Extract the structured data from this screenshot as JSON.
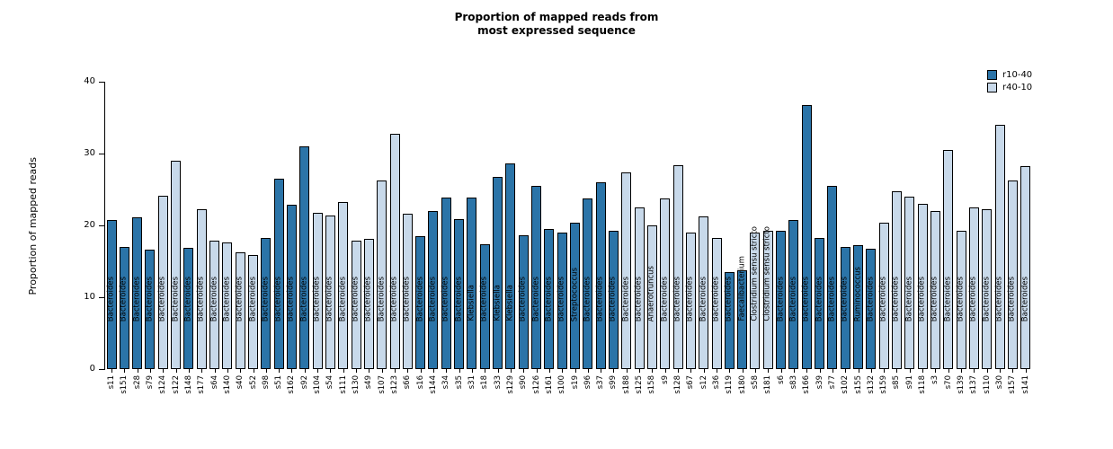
{
  "chart_data": {
    "type": "bar",
    "title": "Proportion of mapped reads from\nmost expressed sequence",
    "xlabel": "",
    "ylabel": "Proportion of mapped reads",
    "ylim": [
      0,
      40
    ],
    "yticks": [
      0,
      10,
      20,
      30,
      40
    ],
    "grid": false,
    "legend_position": "top-right",
    "legend": [
      {
        "label": "r10-40",
        "color": "#2b74a8"
      },
      {
        "label": "r40-10",
        "color": "#c8d9ea"
      }
    ],
    "bars": [
      {
        "sample": "s11",
        "value": 20.7,
        "group": "r10-40",
        "taxon": "Bacteroides"
      },
      {
        "sample": "s151",
        "value": 17.0,
        "group": "r10-40",
        "taxon": "Bacteroides"
      },
      {
        "sample": "s28",
        "value": 21.1,
        "group": "r10-40",
        "taxon": "Bacteroides"
      },
      {
        "sample": "s79",
        "value": 16.6,
        "group": "r10-40",
        "taxon": "Bacteroides"
      },
      {
        "sample": "s124",
        "value": 24.1,
        "group": "r40-10",
        "taxon": "Bacteroides"
      },
      {
        "sample": "s122",
        "value": 29.0,
        "group": "r40-10",
        "taxon": "Bacteroides"
      },
      {
        "sample": "s148",
        "value": 16.9,
        "group": "r10-40",
        "taxon": "Bacteroides"
      },
      {
        "sample": "s177",
        "value": 22.2,
        "group": "r40-10",
        "taxon": "Bacteroides"
      },
      {
        "sample": "s64",
        "value": 17.9,
        "group": "r40-10",
        "taxon": "Bacteroides"
      },
      {
        "sample": "s140",
        "value": 17.6,
        "group": "r40-10",
        "taxon": "Bacteroides"
      },
      {
        "sample": "s40",
        "value": 16.3,
        "group": "r40-10",
        "taxon": "Bacteroides"
      },
      {
        "sample": "s52",
        "value": 15.9,
        "group": "r40-10",
        "taxon": "Bacteroides"
      },
      {
        "sample": "s98",
        "value": 18.3,
        "group": "r10-40",
        "taxon": "Bacteroides"
      },
      {
        "sample": "s51",
        "value": 26.5,
        "group": "r10-40",
        "taxon": "Bacteroides"
      },
      {
        "sample": "s162",
        "value": 22.9,
        "group": "r10-40",
        "taxon": "Bacteroides"
      },
      {
        "sample": "s92",
        "value": 31.0,
        "group": "r10-40",
        "taxon": "Bacteroides"
      },
      {
        "sample": "s104",
        "value": 21.8,
        "group": "r40-10",
        "taxon": "Bacteroides"
      },
      {
        "sample": "s54",
        "value": 21.4,
        "group": "r40-10",
        "taxon": "Bacteroides"
      },
      {
        "sample": "s111",
        "value": 23.2,
        "group": "r40-10",
        "taxon": "Bacteroides"
      },
      {
        "sample": "s130",
        "value": 17.9,
        "group": "r40-10",
        "taxon": "Bacteroides"
      },
      {
        "sample": "s49",
        "value": 18.1,
        "group": "r40-10",
        "taxon": "Bacteroides"
      },
      {
        "sample": "s107",
        "value": 26.2,
        "group": "r40-10",
        "taxon": "Bacteroides"
      },
      {
        "sample": "s123",
        "value": 32.8,
        "group": "r40-10",
        "taxon": "Bacteroides"
      },
      {
        "sample": "s66",
        "value": 21.6,
        "group": "r40-10",
        "taxon": "Bacteroides"
      },
      {
        "sample": "s16",
        "value": 18.5,
        "group": "r10-40",
        "taxon": "Bacteroides"
      },
      {
        "sample": "s144",
        "value": 22.0,
        "group": "r10-40",
        "taxon": "Bacteroides"
      },
      {
        "sample": "s34",
        "value": 23.9,
        "group": "r10-40",
        "taxon": "Bacteroides"
      },
      {
        "sample": "s35",
        "value": 20.9,
        "group": "r10-40",
        "taxon": "Bacteroides"
      },
      {
        "sample": "s31",
        "value": 23.9,
        "group": "r10-40",
        "taxon": "Klebsiella"
      },
      {
        "sample": "s18",
        "value": 17.4,
        "group": "r10-40",
        "taxon": "Bacteroides"
      },
      {
        "sample": "s33",
        "value": 26.7,
        "group": "r10-40",
        "taxon": "Klebsiella"
      },
      {
        "sample": "s129",
        "value": 28.6,
        "group": "r10-40",
        "taxon": "Klebsiella"
      },
      {
        "sample": "s90",
        "value": 18.6,
        "group": "r10-40",
        "taxon": "Bacteroides"
      },
      {
        "sample": "s126",
        "value": 25.5,
        "group": "r10-40",
        "taxon": "Bacteroides"
      },
      {
        "sample": "s161",
        "value": 19.5,
        "group": "r10-40",
        "taxon": "Bacteroides"
      },
      {
        "sample": "s100",
        "value": 19.0,
        "group": "r10-40",
        "taxon": "Bacteroides"
      },
      {
        "sample": "s19",
        "value": 20.4,
        "group": "r10-40",
        "taxon": "Streptococcus"
      },
      {
        "sample": "s96",
        "value": 23.8,
        "group": "r10-40",
        "taxon": "Bacteroides"
      },
      {
        "sample": "s37",
        "value": 26.0,
        "group": "r10-40",
        "taxon": "Bacteroides"
      },
      {
        "sample": "s99",
        "value": 19.3,
        "group": "r10-40",
        "taxon": "Bacteroides"
      },
      {
        "sample": "s188",
        "value": 27.4,
        "group": "r40-10",
        "taxon": "Bacteroides"
      },
      {
        "sample": "s125",
        "value": 22.5,
        "group": "r40-10",
        "taxon": "Bacteroides"
      },
      {
        "sample": "s158",
        "value": 20.0,
        "group": "r40-10",
        "taxon": "Anaerotruncus"
      },
      {
        "sample": "s9",
        "value": 23.8,
        "group": "r40-10",
        "taxon": "Bacteroides"
      },
      {
        "sample": "s128",
        "value": 28.4,
        "group": "r40-10",
        "taxon": "Bacteroides"
      },
      {
        "sample": "s67",
        "value": 19.0,
        "group": "r40-10",
        "taxon": "Bacteroides"
      },
      {
        "sample": "s12",
        "value": 21.2,
        "group": "r40-10",
        "taxon": "Bacteroides"
      },
      {
        "sample": "s36",
        "value": 18.3,
        "group": "r40-10",
        "taxon": "Bacteroides"
      },
      {
        "sample": "s119",
        "value": 13.5,
        "group": "r10-40",
        "taxon": "Bacteroides"
      },
      {
        "sample": "s180",
        "value": 13.8,
        "group": "r10-40",
        "taxon": "Faecalibacterium"
      },
      {
        "sample": "s58",
        "value": 19.0,
        "group": "r40-10",
        "taxon": "Clostridium sensu stricto"
      },
      {
        "sample": "s181",
        "value": 19.2,
        "group": "r40-10",
        "taxon": "Clostridium sensu stricto"
      },
      {
        "sample": "s6",
        "value": 19.3,
        "group": "r10-40",
        "taxon": "Bacteroides"
      },
      {
        "sample": "s83",
        "value": 20.7,
        "group": "r10-40",
        "taxon": "Bacteroides"
      },
      {
        "sample": "s166",
        "value": 36.8,
        "group": "r10-40",
        "taxon": "Bacteroides"
      },
      {
        "sample": "s39",
        "value": 18.2,
        "group": "r10-40",
        "taxon": "Bacteroides"
      },
      {
        "sample": "s77",
        "value": 25.5,
        "group": "r10-40",
        "taxon": "Bacteroides"
      },
      {
        "sample": "s102",
        "value": 17.0,
        "group": "r10-40",
        "taxon": "Bacteroides"
      },
      {
        "sample": "s155",
        "value": 17.2,
        "group": "r10-40",
        "taxon": "Ruminococcus"
      },
      {
        "sample": "s132",
        "value": 16.8,
        "group": "r10-40",
        "taxon": "Bacteroides"
      },
      {
        "sample": "s159",
        "value": 20.4,
        "group": "r40-10",
        "taxon": "Bacteroides"
      },
      {
        "sample": "s85",
        "value": 24.8,
        "group": "r40-10",
        "taxon": "Bacteroides"
      },
      {
        "sample": "s91",
        "value": 24.0,
        "group": "r40-10",
        "taxon": "Bacteroides"
      },
      {
        "sample": "s118",
        "value": 23.0,
        "group": "r40-10",
        "taxon": "Bacteroides"
      },
      {
        "sample": "s3",
        "value": 22.0,
        "group": "r40-10",
        "taxon": "Bacteroides"
      },
      {
        "sample": "s70",
        "value": 30.5,
        "group": "r40-10",
        "taxon": "Bacteroides"
      },
      {
        "sample": "s139",
        "value": 19.2,
        "group": "r40-10",
        "taxon": "Bacteroides"
      },
      {
        "sample": "s137",
        "value": 22.5,
        "group": "r40-10",
        "taxon": "Bacteroides"
      },
      {
        "sample": "s110",
        "value": 22.3,
        "group": "r40-10",
        "taxon": "Bacteroides"
      },
      {
        "sample": "s30",
        "value": 34.0,
        "group": "r40-10",
        "taxon": "Bacteroides"
      },
      {
        "sample": "s157",
        "value": 26.3,
        "group": "r40-10",
        "taxon": "Bacteroides"
      },
      {
        "sample": "s141",
        "value": 28.3,
        "group": "r40-10",
        "taxon": "Bacteroides"
      }
    ]
  }
}
